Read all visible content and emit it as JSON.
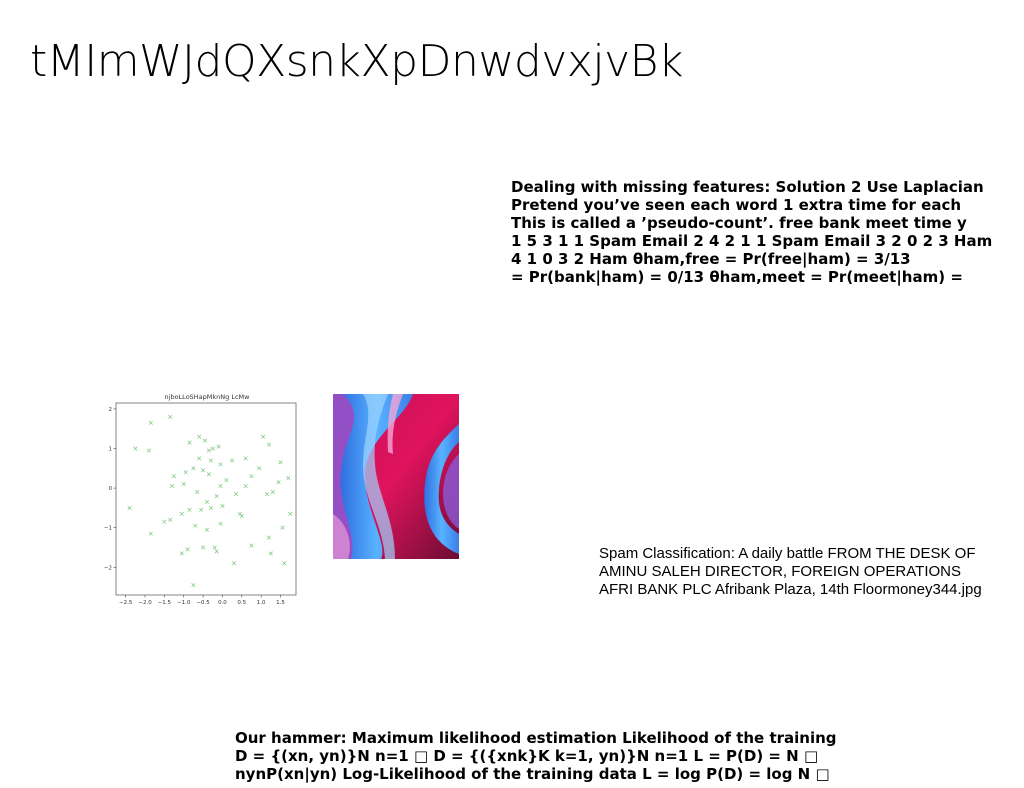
{
  "slide": {
    "title": "tMImWJdQXsnkXpDnwdvxjvBk"
  },
  "text_block_1": {
    "lines": [
      "Dealing with missing features: Solution 2 Use Laplacian",
      "Pretend you’ve seen each word 1 extra time for each",
      "This is called a ’pseudo-count’. free bank meet time y",
      "1 5 3 1 1 Spam Email 2 4 2 1 1 Spam Email 3 2 0 2 3 Ham",
      "4 1 0 3 2 Ham θham,free = Pr(free|ham) = 3/13",
      "= Pr(bank|ham) = 0/13 θham,meet = Pr(meet|ham) ="
    ]
  },
  "text_block_2": {
    "lines": [
      "Spam Classification: A daily battle FROM THE DESK OF",
      "AMINU SALEH DIRECTOR, FOREIGN OPERATIONS",
      "AFRI BANK PLC Afribank Plaza, 14th Floormoney344.jpg"
    ]
  },
  "text_block_3": {
    "lines": [
      "Our hammer: Maximum likelihood estimation Likelihood of the training",
      "D = {(xn, yn)}N n=1 □ D = {({xnk}K k=1, yn)}N n=1 L = P(D) = N □",
      "nynP(xn|yn) Log-Likelihood of the training data L = log P(D) = log N □"
    ]
  },
  "photo": {
    "description_icon": "abstract-wave-image",
    "colors": [
      "#e0135d",
      "#3a8cf0",
      "#8a5ad8",
      "#f2a6d8"
    ]
  },
  "chart_data": {
    "type": "scatter",
    "title": "njboLLoSHapMknNg LcMw",
    "xlabel": "",
    "ylabel": "",
    "xlim": [
      -2.75,
      1.9
    ],
    "ylim": [
      -2.7,
      2.15
    ],
    "xticks": [
      "−2.5",
      "−2.0",
      "−1.5",
      "−1.0",
      "−0.5",
      "0.0",
      "0.5",
      "1.0",
      "1.5"
    ],
    "xtick_values": [
      -2.5,
      -2.0,
      -1.5,
      -1.0,
      -0.5,
      0.0,
      0.5,
      1.0,
      1.5
    ],
    "yticks": [
      "2",
      "1",
      "0",
      "−1",
      "−2"
    ],
    "ytick_values": [
      2,
      1,
      0,
      -1,
      -2
    ],
    "marker": "x",
    "color": "#5cb85c",
    "grid": false,
    "points": [
      [
        -1.85,
        1.65
      ],
      [
        -1.35,
        1.8
      ],
      [
        -2.25,
        1.0
      ],
      [
        -1.9,
        0.95
      ],
      [
        -0.6,
        1.3
      ],
      [
        -0.45,
        1.2
      ],
      [
        -0.85,
        1.15
      ],
      [
        -0.25,
        1.0
      ],
      [
        -0.1,
        1.05
      ],
      [
        -0.35,
        0.95
      ],
      [
        -0.6,
        0.75
      ],
      [
        -0.3,
        0.7
      ],
      [
        -0.05,
        0.6
      ],
      [
        0.25,
        0.7
      ],
      [
        0.6,
        0.75
      ],
      [
        1.05,
        1.3
      ],
      [
        1.2,
        1.1
      ],
      [
        0.95,
        0.5
      ],
      [
        1.5,
        0.65
      ],
      [
        1.45,
        0.15
      ],
      [
        1.7,
        0.25
      ],
      [
        1.3,
        -0.1
      ],
      [
        1.15,
        -0.15
      ],
      [
        0.75,
        0.3
      ],
      [
        0.6,
        0.05
      ],
      [
        0.35,
        -0.15
      ],
      [
        0.1,
        0.2
      ],
      [
        -0.05,
        0.05
      ],
      [
        -0.35,
        0.35
      ],
      [
        -0.5,
        0.45
      ],
      [
        -0.75,
        0.5
      ],
      [
        -0.95,
        0.4
      ],
      [
        -1.25,
        0.3
      ],
      [
        -1.0,
        0.1
      ],
      [
        -1.3,
        0.05
      ],
      [
        -0.65,
        -0.1
      ],
      [
        -0.4,
        -0.35
      ],
      [
        -0.15,
        -0.2
      ],
      [
        -0.3,
        -0.5
      ],
      [
        -0.55,
        -0.55
      ],
      [
        -0.85,
        -0.55
      ],
      [
        -1.05,
        -0.65
      ],
      [
        -1.35,
        -0.8
      ],
      [
        -1.5,
        -0.85
      ],
      [
        -1.85,
        -1.15
      ],
      [
        -2.4,
        -0.5
      ],
      [
        -0.7,
        -0.95
      ],
      [
        -0.4,
        -1.05
      ],
      [
        -0.05,
        -0.9
      ],
      [
        0.45,
        -0.65
      ],
      [
        0.5,
        -0.7
      ],
      [
        1.2,
        -1.25
      ],
      [
        1.55,
        -1.0
      ],
      [
        1.75,
        -0.65
      ],
      [
        1.6,
        -1.9
      ],
      [
        1.25,
        -1.65
      ],
      [
        0.75,
        -1.45
      ],
      [
        0.3,
        -1.9
      ],
      [
        -0.2,
        -1.5
      ],
      [
        -0.5,
        -1.5
      ],
      [
        -0.9,
        -1.55
      ],
      [
        -1.05,
        -1.65
      ],
      [
        -0.15,
        -1.6
      ],
      [
        -0.75,
        -2.45
      ],
      [
        0.0,
        -0.45
      ]
    ]
  }
}
